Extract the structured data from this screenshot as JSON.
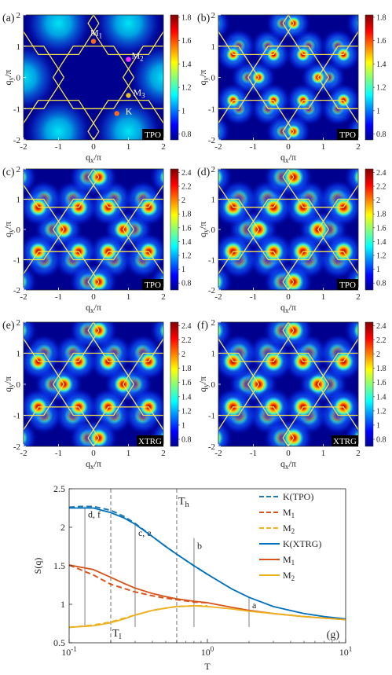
{
  "maps": [
    {
      "id": "a",
      "label": "(a)",
      "method": "TPO",
      "cbar_ticks": [
        "1.8",
        "1.6",
        "1.4",
        "1.2",
        "1",
        "0.8"
      ],
      "cbar_range": [
        0.75,
        1.82
      ],
      "hot": 0.0,
      "points": [
        {
          "name": "M",
          "sub": "1"
        },
        {
          "name": "M",
          "sub": "2"
        },
        {
          "name": "M",
          "sub": "3"
        },
        {
          "name": "K",
          "sub": ""
        }
      ]
    },
    {
      "id": "b",
      "label": "(b)",
      "method": "TPO",
      "cbar_ticks": [
        "1.8",
        "1.6",
        "1.4",
        "1.2",
        "1",
        "0.8"
      ],
      "cbar_range": [
        0.75,
        1.82
      ],
      "hot": 0.45,
      "points": []
    },
    {
      "id": "c",
      "label": "(c)",
      "method": "TPO",
      "cbar_ticks": [
        "2.4",
        "2.2",
        "2",
        "1.8",
        "1.6",
        "1.4",
        "1.2",
        "1",
        "0.8"
      ],
      "cbar_range": [
        0.7,
        2.45
      ],
      "hot": 0.85,
      "points": []
    },
    {
      "id": "d",
      "label": "(d)",
      "method": "TPO",
      "cbar_ticks": [
        "2.4",
        "2.2",
        "2",
        "1.8",
        "1.6",
        "1.4",
        "1.2",
        "1",
        "0.8"
      ],
      "cbar_range": [
        0.7,
        2.45
      ],
      "hot": 1.0,
      "points": []
    },
    {
      "id": "e",
      "label": "(e)",
      "method": "XTRG",
      "cbar_ticks": [
        "2.4",
        "2.2",
        "2",
        "1.8",
        "1.6",
        "1.4",
        "1.2",
        "1",
        "0.8"
      ],
      "cbar_range": [
        0.7,
        2.45
      ],
      "hot": 0.85,
      "points": []
    },
    {
      "id": "f",
      "label": "(f)",
      "method": "XTRG",
      "cbar_ticks": [
        "2.4",
        "2.2",
        "2",
        "1.8",
        "1.6",
        "1.4",
        "1.2",
        "1",
        "0.8"
      ],
      "cbar_range": [
        0.7,
        2.45
      ],
      "hot": 1.0,
      "points": []
    }
  ],
  "map_axes": {
    "xlabel": "q",
    "xsub": "x",
    "ylabel": "q",
    "ysub": "y",
    "unit": "/π",
    "ticks": [
      "-2",
      "-1",
      "0",
      "1",
      "2"
    ]
  },
  "chart_data": {
    "type": "line",
    "label": "(g)",
    "xlabel": "T",
    "ylabel": "S(q)",
    "xscale": "log",
    "xlim": [
      0.1,
      10
    ],
    "ylim": [
      0.5,
      2.5
    ],
    "xticks": [
      "10",
      "10",
      "10"
    ],
    "xtick_exps": [
      "-1",
      "0",
      "1"
    ],
    "yticks": [
      "0.5",
      "1",
      "1.5",
      "2",
      "2.5"
    ],
    "series": [
      {
        "name": "K(TPO)",
        "color": "#1f77b4",
        "dash": true,
        "x": [
          0.1,
          0.12,
          0.15,
          0.2,
          0.25,
          0.3,
          0.4,
          0.5,
          0.6,
          0.8,
          1.0
        ],
        "y": [
          2.26,
          2.27,
          2.27,
          2.22,
          2.14,
          2.05,
          1.88,
          1.75,
          1.65,
          1.5,
          1.39
        ]
      },
      {
        "name": "M",
        "sub": "1",
        "color": "#d95319",
        "dash": true,
        "x": [
          0.1,
          0.15,
          0.2,
          0.3,
          0.4,
          0.5,
          0.6,
          0.8,
          1.0
        ],
        "y": [
          1.51,
          1.38,
          1.26,
          1.16,
          1.11,
          1.08,
          1.06,
          1.03,
          1.02
        ]
      },
      {
        "name": "M",
        "sub": "2",
        "color": "#edb120",
        "dash": true,
        "x": [
          0.1,
          0.15,
          0.2,
          0.3,
          0.4,
          0.5,
          0.6,
          0.8,
          1.0
        ],
        "y": [
          0.7,
          0.73,
          0.77,
          0.86,
          0.92,
          0.95,
          0.97,
          0.98,
          0.98
        ]
      },
      {
        "name": "K(XTRG)",
        "color": "#0072bd",
        "dash": false,
        "x": [
          0.1,
          0.15,
          0.2,
          0.25,
          0.3,
          0.4,
          0.5,
          0.6,
          0.8,
          1,
          1.5,
          2,
          3,
          5,
          7,
          10
        ],
        "y": [
          2.25,
          2.25,
          2.19,
          2.12,
          2.04,
          1.88,
          1.75,
          1.65,
          1.5,
          1.39,
          1.2,
          1.09,
          0.97,
          0.88,
          0.84,
          0.81
        ]
      },
      {
        "name": "M",
        "sub": "1",
        "color": "#d95319",
        "dash": false,
        "x": [
          0.1,
          0.15,
          0.2,
          0.25,
          0.3,
          0.4,
          0.5,
          0.6,
          0.8,
          1,
          1.5,
          2,
          3,
          5,
          10
        ],
        "y": [
          1.51,
          1.45,
          1.35,
          1.27,
          1.21,
          1.14,
          1.1,
          1.07,
          1.04,
          1.02,
          0.96,
          0.92,
          0.88,
          0.84,
          0.8
        ]
      },
      {
        "name": "M",
        "sub": "2",
        "color": "#edb120",
        "dash": false,
        "x": [
          0.1,
          0.15,
          0.2,
          0.25,
          0.3,
          0.4,
          0.5,
          0.6,
          0.8,
          1,
          1.5,
          2,
          3,
          5,
          10
        ],
        "y": [
          0.7,
          0.72,
          0.76,
          0.81,
          0.86,
          0.92,
          0.95,
          0.97,
          0.98,
          0.97,
          0.94,
          0.91,
          0.88,
          0.84,
          0.8
        ]
      }
    ],
    "markers": [
      {
        "text": "d, f",
        "x": 0.13,
        "ytop": 2.27
      },
      {
        "text": "c, e",
        "x": 0.3,
        "ytop": 2.03
      },
      {
        "text": "b",
        "x": 0.8,
        "ytop": 1.86
      },
      {
        "text": "a",
        "x": 2.0,
        "ytop": 1.09
      }
    ],
    "dashed_lines": [
      {
        "text": "T",
        "sub": "h",
        "x": 0.6
      },
      {
        "text": "T",
        "sub": "l",
        "x": 0.2
      }
    ]
  }
}
